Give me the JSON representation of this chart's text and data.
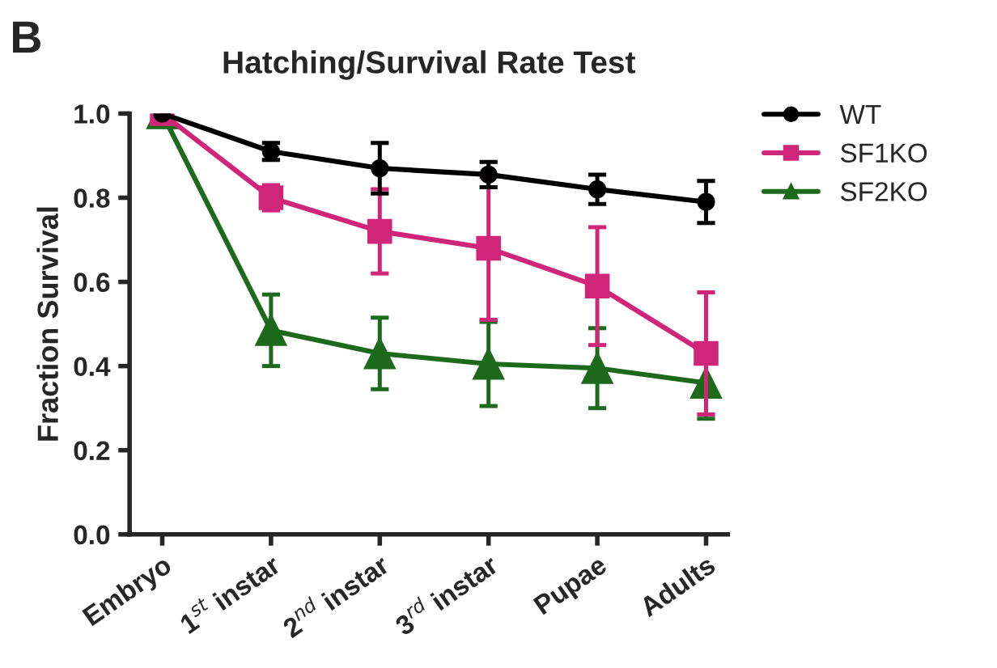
{
  "chart_data": {
    "type": "line",
    "title": "Hatching/Survival Rate Test",
    "ylabel": "Fraction Survival",
    "annotations": [
      "B"
    ],
    "categories": [
      "Embryo",
      "1$^{st}$ instar",
      "2$^{nd}$ instar",
      "3$^{rd}$ instar",
      "Pupae",
      "Adults"
    ],
    "series": [
      {
        "name": "WT",
        "color": "#000000",
        "marker": "circle",
        "values": [
          1.0,
          0.91,
          0.87,
          0.855,
          0.82,
          0.79
        ],
        "errors": [
          null,
          0.02,
          0.06,
          0.03,
          0.035,
          0.05
        ]
      },
      {
        "name": "SF1KO",
        "color": "#d0267a",
        "marker": "square",
        "values": [
          1.0,
          0.8,
          0.72,
          0.68,
          0.59,
          0.43
        ],
        "errors": [
          null,
          0.03,
          0.1,
          0.17,
          0.14,
          0.145
        ]
      },
      {
        "name": "SF2KO",
        "color": "#1d6a1d",
        "marker": "triangle",
        "values": [
          1.0,
          0.485,
          0.43,
          0.405,
          0.395,
          0.36
        ],
        "errors": [
          null,
          0.085,
          0.085,
          0.1,
          0.095,
          0.085
        ]
      }
    ],
    "ylim": [
      0,
      1.0
    ],
    "yticks": [
      "0.0",
      0.2,
      0.4,
      0.6,
      0.8,
      "1.0"
    ],
    "grid": false,
    "legend": "top right",
    "line_style": "solid"
  }
}
